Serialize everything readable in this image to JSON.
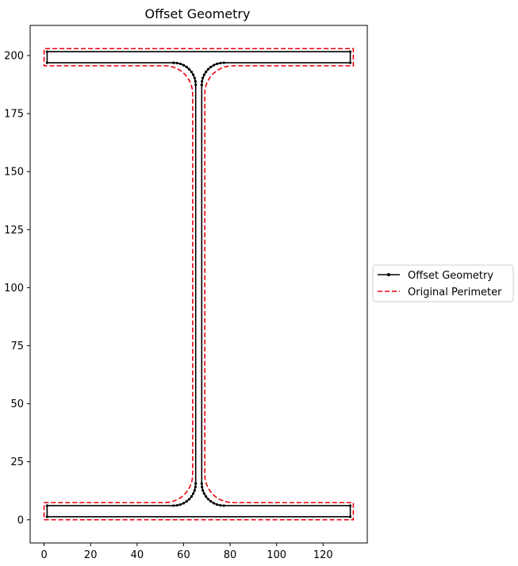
{
  "chart_data": {
    "type": "line",
    "title": "Offset Geometry",
    "xlabel": "",
    "ylabel": "",
    "xlim": [
      -6,
      139
    ],
    "ylim": [
      -10,
      213
    ],
    "x_ticks": [
      0,
      20,
      40,
      60,
      80,
      100,
      120
    ],
    "y_ticks": [
      0,
      25,
      50,
      75,
      100,
      125,
      150,
      175,
      200
    ],
    "grid": false,
    "legend_position": "right",
    "legend": [
      "Offset Geometry",
      "Original Perimeter"
    ],
    "series": [
      {
        "name": "Offset Geometry",
        "color": "#000000",
        "style": "solid-with-point-markers",
        "shape": {
          "x_left": 1.3,
          "x_right": 131.7,
          "y_bottom": 1.3,
          "y_top": 201.7,
          "flange_inner_bottom": 6.1,
          "flange_inner_top": 196.9,
          "web_left": 65.2,
          "web_right": 67.8,
          "fillet_radius": 9.5
        }
      },
      {
        "name": "Original Perimeter",
        "color": "#e8000b",
        "style": "dashed",
        "shape": {
          "x_left": 0,
          "x_right": 133,
          "y_bottom": 0,
          "y_top": 203,
          "flange_inner_bottom": 7.4,
          "flange_inner_top": 195.6,
          "web_left": 63.9,
          "web_right": 69.1,
          "fillet_radius": 12
        }
      }
    ]
  }
}
